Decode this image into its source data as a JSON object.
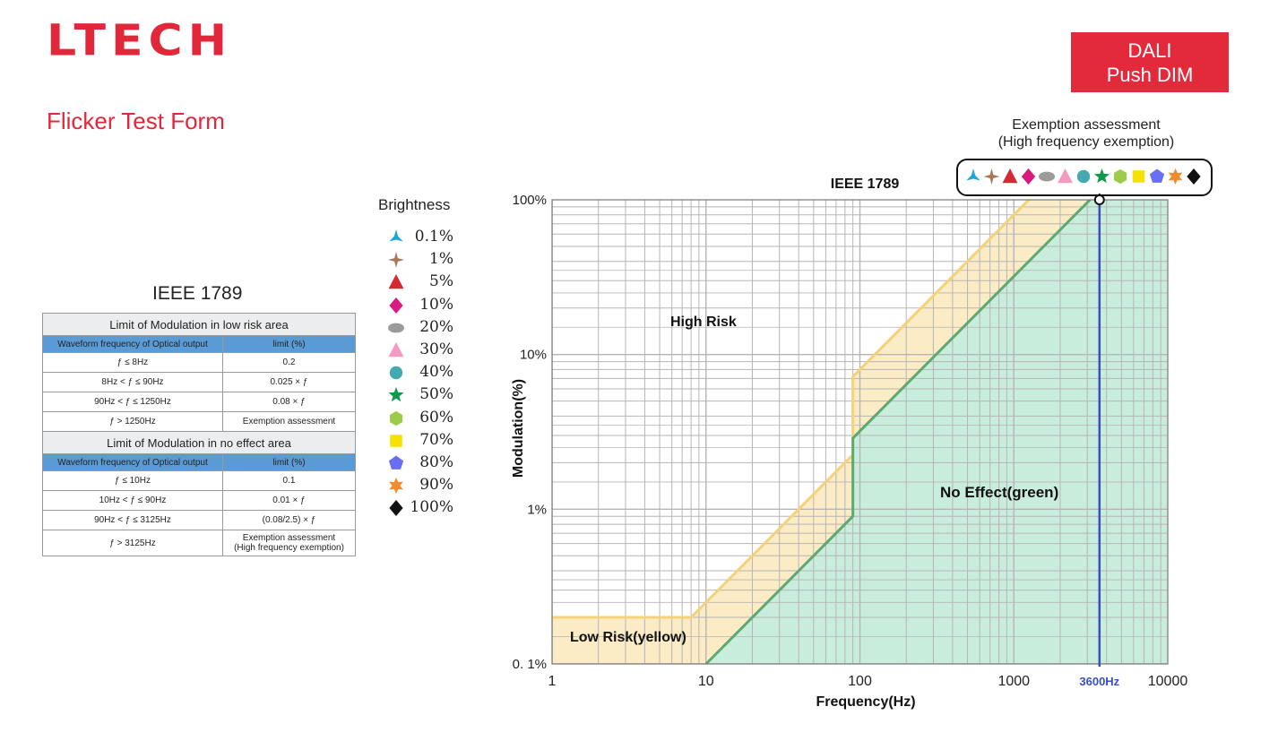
{
  "header": {
    "logo": "LTECH",
    "badge_line1": "DALI",
    "badge_line2": "Push DIM",
    "form_title": "Flicker Test Form"
  },
  "standard_table": {
    "title": "IEEE 1789",
    "low_risk_section": "Limit of Modulation in low risk area",
    "no_effect_section": "Limit of Modulation in no effect area",
    "col_frequency": "Waveform frequency of Optical output",
    "col_limit": "limit (%)",
    "low_risk_rows": [
      {
        "freq": "ƒ ≤ 8Hz",
        "limit": "0.2"
      },
      {
        "freq": "8Hz < ƒ ≤ 90Hz",
        "limit": "0.025 × ƒ"
      },
      {
        "freq": "90Hz < ƒ ≤ 1250Hz",
        "limit": "0.08 × ƒ"
      },
      {
        "freq": "ƒ > 1250Hz",
        "limit": "Exemption assessment"
      }
    ],
    "no_effect_rows": [
      {
        "freq": "ƒ ≤ 10Hz",
        "limit": "0.1"
      },
      {
        "freq": "10Hz < ƒ ≤ 90Hz",
        "limit": "0.01 × ƒ"
      },
      {
        "freq": "90Hz < ƒ ≤ 3125Hz",
        "limit": "(0.08/2.5) × ƒ"
      },
      {
        "freq": "ƒ > 3125Hz",
        "limit": "Exemption assessment",
        "limit2": "(High frequency exemption)"
      }
    ]
  },
  "legend": {
    "title": "Brightness",
    "items": [
      {
        "label": "0.1%",
        "shape": "tri-star-icon",
        "color": "#1aa7dc"
      },
      {
        "label": "1%",
        "shape": "four-point-star-icon",
        "color": "#a9775a"
      },
      {
        "label": "5%",
        "shape": "triangle-icon",
        "color": "#d42a33"
      },
      {
        "label": "10%",
        "shape": "diamond-icon",
        "color": "#d81b7c"
      },
      {
        "label": "20%",
        "shape": "ellipse-icon",
        "color": "#9b9b9b"
      },
      {
        "label": "30%",
        "shape": "triangle-icon",
        "color": "#f49ac2"
      },
      {
        "label": "40%",
        "shape": "circle-icon",
        "color": "#45a9b0"
      },
      {
        "label": "50%",
        "shape": "star-icon",
        "color": "#0f9a4a"
      },
      {
        "label": "60%",
        "shape": "hexagon-icon",
        "color": "#9ccc4a"
      },
      {
        "label": "70%",
        "shape": "square-icon",
        "color": "#f5e200"
      },
      {
        "label": "80%",
        "shape": "pentagon-icon",
        "color": "#6a6ef0"
      },
      {
        "label": "90%",
        "shape": "six-point-star-icon",
        "color": "#f28a2e"
      },
      {
        "label": "100%",
        "shape": "diamond-icon",
        "color": "#111111"
      }
    ]
  },
  "exemption": {
    "title_line1": "Exemption assessment",
    "title_line2": "(High frequency exemption)"
  },
  "chart_data": {
    "type": "line",
    "title": "IEEE 1789",
    "xlabel": "Frequency(Hz)",
    "ylabel": "Modulation(%)",
    "x_scale": "log",
    "y_scale": "log",
    "xlim": [
      1,
      10000
    ],
    "ylim": [
      0.1,
      100
    ],
    "x_ticks": [
      {
        "value": 1,
        "label": "1"
      },
      {
        "value": 10,
        "label": "10"
      },
      {
        "value": 100,
        "label": "100"
      },
      {
        "value": 1000,
        "label": "1000"
      },
      {
        "value": 10000,
        "label": "10000"
      }
    ],
    "y_ticks": [
      {
        "value": 0.1,
        "label": "0. 1%"
      },
      {
        "value": 1,
        "label": "1%"
      },
      {
        "value": 10,
        "label": "10%"
      },
      {
        "value": 100,
        "label": "100%"
      }
    ],
    "grid": true,
    "low_risk_boundary": {
      "x": [
        1,
        8,
        90,
        90,
        1250
      ],
      "y": [
        0.2,
        0.2,
        2.25,
        7.2,
        100
      ]
    },
    "no_effect_boundary": {
      "x": [
        10,
        90,
        90,
        3125
      ],
      "y": [
        0.1,
        0.9,
        2.88,
        100
      ]
    },
    "marker_frequency": {
      "value": 3600,
      "label": "3600Hz"
    },
    "measurement": {
      "x": 3600,
      "y": 100
    },
    "region_labels": {
      "high_risk": "High Risk",
      "low_risk": "Low Risk(yellow)",
      "no_effect": "No Effect(green)"
    },
    "colors": {
      "low_risk_fill": "#fcecc6",
      "low_risk_line": "#f5d27a",
      "no_effect_fill": "#c9eddc",
      "no_effect_line": "#5fa870",
      "marker_line": "#3a4fbf",
      "grid": "#b5b5b5"
    }
  }
}
